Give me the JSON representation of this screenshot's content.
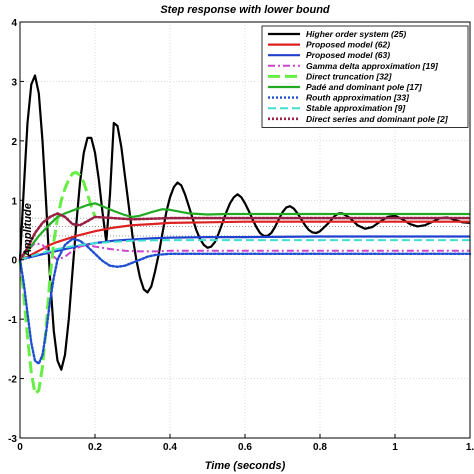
{
  "chart_data": {
    "type": "line",
    "title": "Step response with lower bound",
    "xlabel": "Time (seconds)",
    "ylabel": "Amplitude",
    "xlim": [
      0,
      1.2
    ],
    "ylim": [
      -3,
      4
    ],
    "x_ticks": [
      0,
      0.2,
      0.4,
      0.6,
      0.8,
      1
    ],
    "x_tick_labels": [
      "0",
      "0.2",
      "0.4",
      "0.6",
      "0.8",
      "1"
    ],
    "x_edge_label": "1.",
    "y_ticks": [
      -3,
      -2,
      -1,
      0,
      1,
      2,
      3,
      4
    ],
    "y_tick_labels": [
      "-3",
      "-2",
      "-1",
      "0",
      "1",
      "2",
      "3",
      "4"
    ],
    "grid": true,
    "legend_position": "top-right",
    "reference_lines": [
      {
        "y": 0.7,
        "color": "#888888",
        "style": "dotted"
      },
      {
        "y": 0.56,
        "color": "#888888",
        "style": "dotted"
      },
      {
        "y": 0.4,
        "color": "#888888",
        "style": "dotted"
      }
    ],
    "series": [
      {
        "name": "Higher order system (25)",
        "color": "#000000",
        "dash": "solid",
        "width": 2.2,
        "points": [
          [
            0,
            0
          ],
          [
            0.01,
            1.2
          ],
          [
            0.02,
            2.3
          ],
          [
            0.03,
            2.95
          ],
          [
            0.04,
            3.1
          ],
          [
            0.05,
            2.8
          ],
          [
            0.06,
            2.0
          ],
          [
            0.07,
            0.9
          ],
          [
            0.08,
            -0.3
          ],
          [
            0.09,
            -1.2
          ],
          [
            0.1,
            -1.7
          ],
          [
            0.11,
            -1.85
          ],
          [
            0.12,
            -1.6
          ],
          [
            0.13,
            -1.0
          ],
          [
            0.14,
            -0.2
          ],
          [
            0.15,
            0.6
          ],
          [
            0.16,
            1.3
          ],
          [
            0.17,
            1.8
          ],
          [
            0.18,
            2.05
          ],
          [
            0.19,
            2.05
          ],
          [
            0.2,
            1.8
          ],
          [
            0.21,
            1.35
          ],
          [
            0.22,
            0.8
          ],
          [
            0.23,
            0.3
          ],
          [
            0.24,
            1.1
          ],
          [
            0.25,
            2.3
          ],
          [
            0.26,
            2.25
          ],
          [
            0.27,
            1.9
          ],
          [
            0.28,
            1.4
          ],
          [
            0.29,
            0.9
          ],
          [
            0.3,
            0.4
          ],
          [
            0.31,
            0.0
          ],
          [
            0.32,
            -0.3
          ],
          [
            0.33,
            -0.5
          ],
          [
            0.34,
            -0.55
          ],
          [
            0.35,
            -0.45
          ],
          [
            0.36,
            -0.2
          ],
          [
            0.37,
            0.1
          ],
          [
            0.38,
            0.45
          ],
          [
            0.39,
            0.8
          ],
          [
            0.4,
            1.05
          ],
          [
            0.41,
            1.22
          ],
          [
            0.42,
            1.3
          ],
          [
            0.43,
            1.25
          ],
          [
            0.44,
            1.1
          ],
          [
            0.45,
            0.9
          ],
          [
            0.46,
            0.7
          ],
          [
            0.47,
            0.5
          ],
          [
            0.48,
            0.35
          ],
          [
            0.49,
            0.25
          ],
          [
            0.5,
            0.2
          ],
          [
            0.51,
            0.22
          ],
          [
            0.52,
            0.3
          ],
          [
            0.53,
            0.45
          ],
          [
            0.54,
            0.62
          ],
          [
            0.55,
            0.8
          ],
          [
            0.56,
            0.95
          ],
          [
            0.57,
            1.05
          ],
          [
            0.58,
            1.1
          ],
          [
            0.59,
            1.05
          ],
          [
            0.6,
            0.95
          ],
          [
            0.61,
            0.82
          ],
          [
            0.62,
            0.68
          ],
          [
            0.63,
            0.55
          ],
          [
            0.64,
            0.45
          ],
          [
            0.65,
            0.4
          ],
          [
            0.66,
            0.4
          ],
          [
            0.67,
            0.45
          ],
          [
            0.68,
            0.55
          ],
          [
            0.69,
            0.68
          ],
          [
            0.7,
            0.8
          ],
          [
            0.71,
            0.88
          ],
          [
            0.72,
            0.9
          ],
          [
            0.73,
            0.86
          ],
          [
            0.74,
            0.78
          ],
          [
            0.75,
            0.68
          ],
          [
            0.76,
            0.58
          ],
          [
            0.77,
            0.5
          ],
          [
            0.78,
            0.46
          ],
          [
            0.79,
            0.45
          ],
          [
            0.8,
            0.48
          ],
          [
            0.82,
            0.6
          ],
          [
            0.84,
            0.74
          ],
          [
            0.85,
            0.78
          ],
          [
            0.86,
            0.78
          ],
          [
            0.88,
            0.7
          ],
          [
            0.9,
            0.58
          ],
          [
            0.92,
            0.52
          ],
          [
            0.94,
            0.55
          ],
          [
            0.96,
            0.64
          ],
          [
            0.98,
            0.72
          ],
          [
            1.0,
            0.74
          ],
          [
            1.02,
            0.68
          ],
          [
            1.04,
            0.6
          ],
          [
            1.06,
            0.56
          ],
          [
            1.08,
            0.58
          ],
          [
            1.1,
            0.64
          ],
          [
            1.12,
            0.7
          ],
          [
            1.14,
            0.71
          ],
          [
            1.16,
            0.67
          ],
          [
            1.18,
            0.63
          ],
          [
            1.2,
            0.62
          ]
        ]
      },
      {
        "name": "Proposed model (62)",
        "color": "#dd2020",
        "dash": "solid",
        "width": 2.2,
        "points": [
          [
            0,
            0
          ],
          [
            0.02,
            0.05
          ],
          [
            0.05,
            0.15
          ],
          [
            0.08,
            0.25
          ],
          [
            0.1,
            0.3
          ],
          [
            0.15,
            0.4
          ],
          [
            0.2,
            0.48
          ],
          [
            0.25,
            0.54
          ],
          [
            0.3,
            0.58
          ],
          [
            0.35,
            0.6
          ],
          [
            0.4,
            0.62
          ],
          [
            0.5,
            0.63
          ],
          [
            0.6,
            0.64
          ],
          [
            0.8,
            0.64
          ],
          [
            1.0,
            0.64
          ],
          [
            1.2,
            0.64
          ]
        ]
      },
      {
        "name": "Proposed model (63)",
        "color": "#2040d0",
        "dash": "solid",
        "width": 2.2,
        "points": [
          [
            0,
            0
          ],
          [
            0.05,
            0.08
          ],
          [
            0.1,
            0.15
          ],
          [
            0.15,
            0.22
          ],
          [
            0.2,
            0.28
          ],
          [
            0.25,
            0.32
          ],
          [
            0.3,
            0.34
          ],
          [
            0.35,
            0.36
          ],
          [
            0.4,
            0.37
          ],
          [
            0.5,
            0.38
          ],
          [
            0.6,
            0.38
          ],
          [
            0.8,
            0.39
          ],
          [
            1.0,
            0.39
          ],
          [
            1.2,
            0.39
          ]
        ]
      },
      {
        "name": "Gamma delta approximation [19]",
        "color": "#cc44cc",
        "dash": "dashdot",
        "width": 2.0,
        "points": [
          [
            0,
            0
          ],
          [
            0.02,
            0.15
          ],
          [
            0.04,
            0.28
          ],
          [
            0.06,
            0.25
          ],
          [
            0.08,
            0.1
          ],
          [
            0.1,
            0.0
          ],
          [
            0.12,
            0.05
          ],
          [
            0.14,
            0.15
          ],
          [
            0.16,
            0.22
          ],
          [
            0.18,
            0.25
          ],
          [
            0.2,
            0.22
          ],
          [
            0.24,
            0.18
          ],
          [
            0.28,
            0.15
          ],
          [
            0.32,
            0.14
          ],
          [
            0.36,
            0.14
          ],
          [
            0.4,
            0.15
          ],
          [
            0.5,
            0.15
          ],
          [
            0.6,
            0.15
          ],
          [
            0.8,
            0.15
          ],
          [
            1.0,
            0.15
          ],
          [
            1.2,
            0.15
          ]
        ]
      },
      {
        "name": "Direct truncation [32]",
        "color": "#66ee44",
        "dash": "longdash",
        "width": 3.0,
        "points": [
          [
            0,
            0
          ],
          [
            0.01,
            -0.6
          ],
          [
            0.02,
            -1.3
          ],
          [
            0.03,
            -1.9
          ],
          [
            0.04,
            -2.25
          ],
          [
            0.05,
            -2.2
          ],
          [
            0.06,
            -1.8
          ],
          [
            0.07,
            -1.1
          ],
          [
            0.08,
            -0.3
          ],
          [
            0.09,
            0.3
          ],
          [
            0.1,
            0.7
          ],
          [
            0.11,
            1.0
          ],
          [
            0.12,
            1.2
          ],
          [
            0.13,
            1.35
          ],
          [
            0.14,
            1.45
          ],
          [
            0.15,
            1.47
          ],
          [
            0.16,
            1.42
          ],
          [
            0.17,
            1.3
          ],
          [
            0.18,
            1.1
          ],
          [
            0.19,
            0.9
          ],
          [
            0.2,
            0.72
          ]
        ]
      },
      {
        "name": "Padé and dominant pole [17]",
        "color": "#22aa22",
        "dash": "solid",
        "width": 2.2,
        "points": [
          [
            0,
            0
          ],
          [
            0.02,
            0.15
          ],
          [
            0.05,
            0.4
          ],
          [
            0.08,
            0.6
          ],
          [
            0.1,
            0.72
          ],
          [
            0.12,
            0.78
          ],
          [
            0.15,
            0.85
          ],
          [
            0.18,
            0.92
          ],
          [
            0.2,
            0.95
          ],
          [
            0.22,
            0.9
          ],
          [
            0.25,
            0.82
          ],
          [
            0.28,
            0.75
          ],
          [
            0.3,
            0.72
          ],
          [
            0.32,
            0.74
          ],
          [
            0.35,
            0.8
          ],
          [
            0.38,
            0.85
          ],
          [
            0.4,
            0.84
          ],
          [
            0.45,
            0.78
          ],
          [
            0.5,
            0.76
          ],
          [
            0.55,
            0.77
          ],
          [
            0.6,
            0.77
          ],
          [
            0.7,
            0.77
          ],
          [
            0.8,
            0.77
          ],
          [
            1.0,
            0.77
          ],
          [
            1.2,
            0.77
          ]
        ]
      },
      {
        "name": "Routh approximation [33]",
        "color": "#2050d0",
        "dash": "dotted",
        "width": 2.4,
        "points": [
          [
            0,
            0
          ],
          [
            0.01,
            -0.4
          ],
          [
            0.02,
            -0.9
          ],
          [
            0.03,
            -1.4
          ],
          [
            0.04,
            -1.7
          ],
          [
            0.05,
            -1.75
          ],
          [
            0.06,
            -1.6
          ],
          [
            0.07,
            -1.2
          ],
          [
            0.08,
            -0.7
          ],
          [
            0.09,
            -0.3
          ],
          [
            0.1,
            0.0
          ],
          [
            0.12,
            0.25
          ],
          [
            0.14,
            0.35
          ],
          [
            0.16,
            0.32
          ],
          [
            0.18,
            0.22
          ],
          [
            0.2,
            0.1
          ],
          [
            0.22,
            -0.02
          ],
          [
            0.24,
            -0.1
          ],
          [
            0.26,
            -0.12
          ],
          [
            0.28,
            -0.1
          ],
          [
            0.3,
            -0.05
          ],
          [
            0.32,
            0.0
          ],
          [
            0.34,
            0.05
          ],
          [
            0.36,
            0.08
          ],
          [
            0.4,
            0.1
          ],
          [
            0.5,
            0.1
          ],
          [
            0.6,
            0.1
          ],
          [
            0.8,
            0.1
          ],
          [
            1.0,
            0.1
          ],
          [
            1.2,
            0.1
          ]
        ]
      },
      {
        "name": "Stable approximation [9]",
        "color": "#40e0d0",
        "dash": "dashed",
        "width": 2.0,
        "points": [
          [
            0,
            0
          ],
          [
            0.05,
            0.1
          ],
          [
            0.1,
            0.18
          ],
          [
            0.15,
            0.24
          ],
          [
            0.2,
            0.28
          ],
          [
            0.3,
            0.32
          ],
          [
            0.4,
            0.33
          ],
          [
            0.6,
            0.33
          ],
          [
            0.8,
            0.33
          ],
          [
            1.0,
            0.33
          ],
          [
            1.2,
            0.33
          ]
        ]
      },
      {
        "name": "Direct series and dominant pole [2]",
        "color": "#992244",
        "dash": "dotted",
        "width": 2.6,
        "points": [
          [
            0,
            0
          ],
          [
            0.02,
            0.2
          ],
          [
            0.04,
            0.45
          ],
          [
            0.06,
            0.62
          ],
          [
            0.08,
            0.72
          ],
          [
            0.1,
            0.78
          ],
          [
            0.12,
            0.72
          ],
          [
            0.14,
            0.6
          ],
          [
            0.16,
            0.58
          ],
          [
            0.18,
            0.65
          ],
          [
            0.2,
            0.72
          ],
          [
            0.25,
            0.7
          ],
          [
            0.3,
            0.68
          ],
          [
            0.35,
            0.69
          ],
          [
            0.4,
            0.7
          ],
          [
            0.5,
            0.7
          ],
          [
            0.6,
            0.7
          ],
          [
            0.8,
            0.7
          ],
          [
            1.0,
            0.7
          ],
          [
            1.2,
            0.7
          ]
        ]
      }
    ]
  }
}
